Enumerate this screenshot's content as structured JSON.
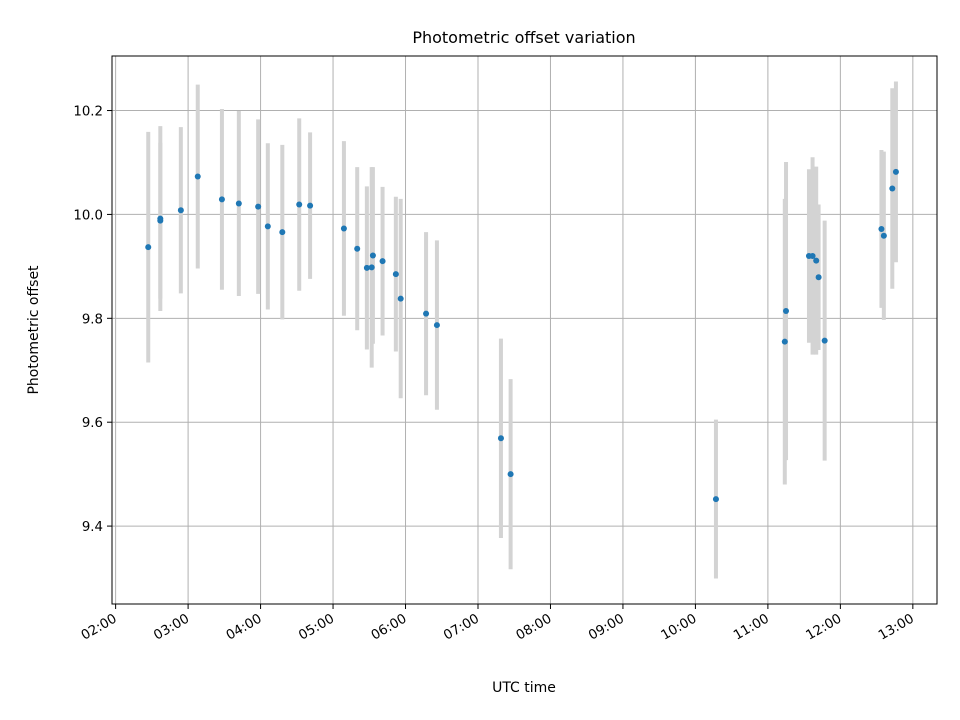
{
  "chart_data": {
    "type": "scatter",
    "title": "Photometric offset variation",
    "xlabel": "UTC time",
    "ylabel": "Photometric offset",
    "xlim": [
      "01:57",
      "13:20"
    ],
    "ylim": [
      9.25,
      10.305
    ],
    "xticks": [
      "02:00",
      "03:00",
      "04:00",
      "05:00",
      "06:00",
      "07:00",
      "08:00",
      "09:00",
      "10:00",
      "11:00",
      "12:00",
      "13:00"
    ],
    "yticks": [
      "9.4",
      "9.6",
      "9.8",
      "10.0",
      "10.2"
    ],
    "grid": true,
    "colors": {
      "point": "#1f77b4",
      "errorbar": "#d3d3d3"
    },
    "points": [
      {
        "x": "02:27",
        "y": 9.937,
        "err": 0.222
      },
      {
        "x": "02:37",
        "y": 9.992,
        "err": 0.178
      },
      {
        "x": "02:37",
        "y": 9.988,
        "err": 0.15
      },
      {
        "x": "02:54",
        "y": 10.008,
        "err": 0.16
      },
      {
        "x": "03:08",
        "y": 10.073,
        "err": 0.177
      },
      {
        "x": "03:28",
        "y": 10.029,
        "err": 0.174
      },
      {
        "x": "03:42",
        "y": 10.021,
        "err": 0.178
      },
      {
        "x": "03:58",
        "y": 10.015,
        "err": 0.168
      },
      {
        "x": "04:06",
        "y": 9.977,
        "err": 0.16
      },
      {
        "x": "04:18",
        "y": 9.966,
        "err": 0.168
      },
      {
        "x": "04:32",
        "y": 10.019,
        "err": 0.166
      },
      {
        "x": "04:41",
        "y": 10.017,
        "err": 0.141
      },
      {
        "x": "05:09",
        "y": 9.973,
        "err": 0.168
      },
      {
        "x": "05:20",
        "y": 9.934,
        "err": 0.157
      },
      {
        "x": "05:28",
        "y": 9.897,
        "err": 0.157
      },
      {
        "x": "05:32",
        "y": 9.898,
        "err": 0.193
      },
      {
        "x": "05:33",
        "y": 9.921,
        "err": 0.17
      },
      {
        "x": "05:41",
        "y": 9.91,
        "err": 0.143
      },
      {
        "x": "05:52",
        "y": 9.885,
        "err": 0.149
      },
      {
        "x": "05:56",
        "y": 9.838,
        "err": 0.192
      },
      {
        "x": "06:17",
        "y": 9.809,
        "err": 0.157
      },
      {
        "x": "06:26",
        "y": 9.787,
        "err": 0.163
      },
      {
        "x": "07:19",
        "y": 9.569,
        "err": 0.192
      },
      {
        "x": "07:27",
        "y": 9.5,
        "err": 0.183
      },
      {
        "x": "10:17",
        "y": 9.452,
        "err": 0.153
      },
      {
        "x": "11:14",
        "y": 9.755,
        "err": 0.275
      },
      {
        "x": "11:15",
        "y": 9.814,
        "err": 0.287
      },
      {
        "x": "11:34",
        "y": 9.92,
        "err": 0.167
      },
      {
        "x": "11:37",
        "y": 9.92,
        "err": 0.19
      },
      {
        "x": "11:40",
        "y": 9.911,
        "err": 0.181
      },
      {
        "x": "11:42",
        "y": 9.879,
        "err": 0.14
      },
      {
        "x": "11:47",
        "y": 9.757,
        "err": 0.231
      },
      {
        "x": "12:34",
        "y": 9.972,
        "err": 0.152
      },
      {
        "x": "12:36",
        "y": 9.959,
        "err": 0.162
      },
      {
        "x": "12:43",
        "y": 10.05,
        "err": 0.193
      },
      {
        "x": "12:46",
        "y": 10.082,
        "err": 0.174
      }
    ]
  }
}
